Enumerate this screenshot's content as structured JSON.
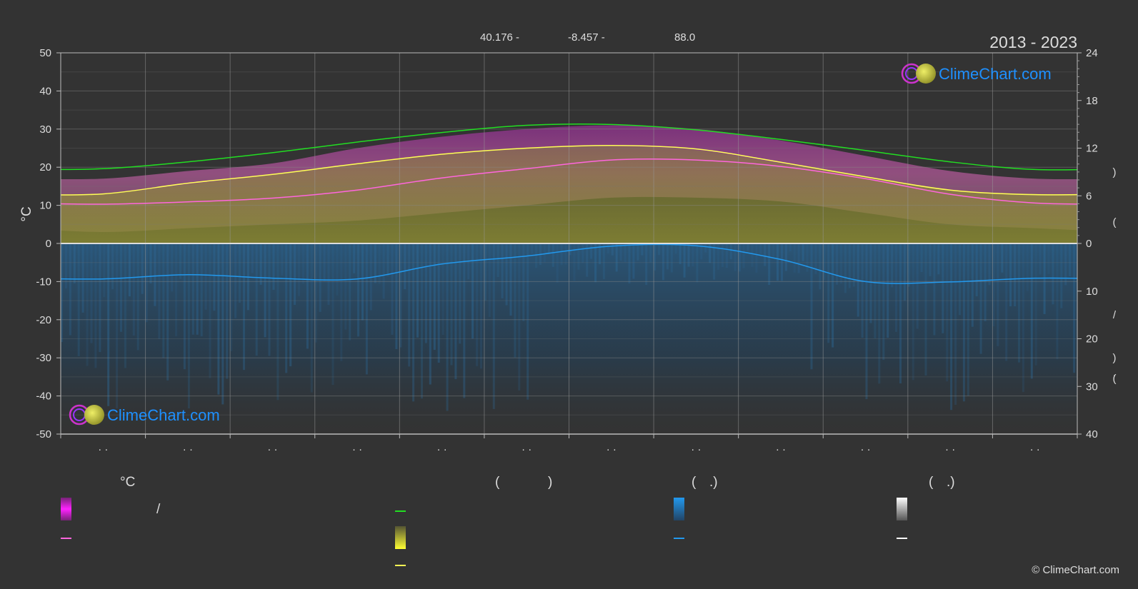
{
  "header": {
    "coords": [
      "40.176 -",
      "-8.457 -",
      "88.0"
    ],
    "period": "2013 - 2023"
  },
  "logo": {
    "text": "ClimeChart.com"
  },
  "copyright": "© ClimeChart.com",
  "legend": {
    "temp_unit": "°C",
    "paren_1": "(",
    "paren_2": ")",
    "paren_3": "(",
    "paren_4": ".)",
    "paren_5": "(",
    "paren_6": ".)",
    "slash": "/"
  },
  "colors": {
    "background": "#333333",
    "daylight": "#22dd22",
    "sunshine_line": "#ffff55",
    "temp_mean": "#ff66dd",
    "temp_range": "#ee44ee",
    "precip": "#2299ee",
    "snow": "#ffffff",
    "logo_blue": "#1e90ff"
  },
  "chart_data": {
    "type": "area",
    "title": "",
    "period": "2013 - 2023",
    "months_x": [
      0.5,
      1.5,
      2.5,
      3.5,
      4.5,
      5.5,
      6.5,
      7.5,
      8.5,
      9.5,
      10.5,
      11.5
    ],
    "left_axis": {
      "label": "°C",
      "ylim": [
        -50,
        50
      ],
      "ticks": [
        50,
        40,
        30,
        20,
        10,
        0,
        -10,
        -20,
        -30,
        -40,
        -50
      ]
    },
    "right_axis_top": {
      "ticks": [
        24,
        18,
        12,
        6,
        0
      ],
      "range": [
        0,
        24
      ]
    },
    "right_axis_bottom": {
      "ticks": [
        0,
        10,
        20,
        30,
        40
      ],
      "range": [
        0,
        40
      ]
    },
    "x_tick_labels": [
      "· ·",
      "· ·",
      "· ·",
      "· ·",
      "· ·",
      "· ·",
      "· ·",
      "· ·",
      "· ·",
      "· ·",
      "· ·",
      "· ·"
    ],
    "series": [
      {
        "values": [
          10.3,
          10.9,
          11.9,
          14.0,
          17.2,
          19.6,
          21.9,
          21.9,
          20.2,
          17.0,
          12.9,
          10.6
        ]
      },
      {
        "values": [
          13.0,
          15.8,
          18.1,
          20.9,
          23.4,
          25.0,
          25.7,
          24.8,
          21.3,
          17.5,
          14.0,
          12.8
        ]
      },
      {
        "values": [
          19.6,
          21.4,
          23.8,
          26.6,
          29.1,
          31.0,
          31.2,
          29.8,
          27.3,
          24.4,
          21.4,
          19.4
        ]
      },
      {
        "values": [
          -9.3,
          -8.2,
          -9.1,
          -9.3,
          -5.4,
          -3.3,
          -0.7,
          -0.6,
          -4.2,
          -10.0,
          -10.1,
          -9.1
        ]
      }
    ],
    "temp_band_low": [
      3,
      4,
      5,
      6,
      8,
      10,
      12,
      12,
      11,
      8,
      5,
      4
    ],
    "temp_band_high": [
      17,
      19,
      21,
      25,
      28,
      30,
      31,
      30,
      27,
      23,
      19,
      17
    ],
    "sunshine_band_high": [
      13,
      15.5,
      18,
      21,
      23.5,
      25,
      25.5,
      24.5,
      21,
      17.5,
      14,
      13
    ],
    "sunshine_band_low": [
      0,
      0,
      0,
      0,
      0,
      0,
      0,
      0,
      0,
      0,
      0,
      0
    ]
  }
}
